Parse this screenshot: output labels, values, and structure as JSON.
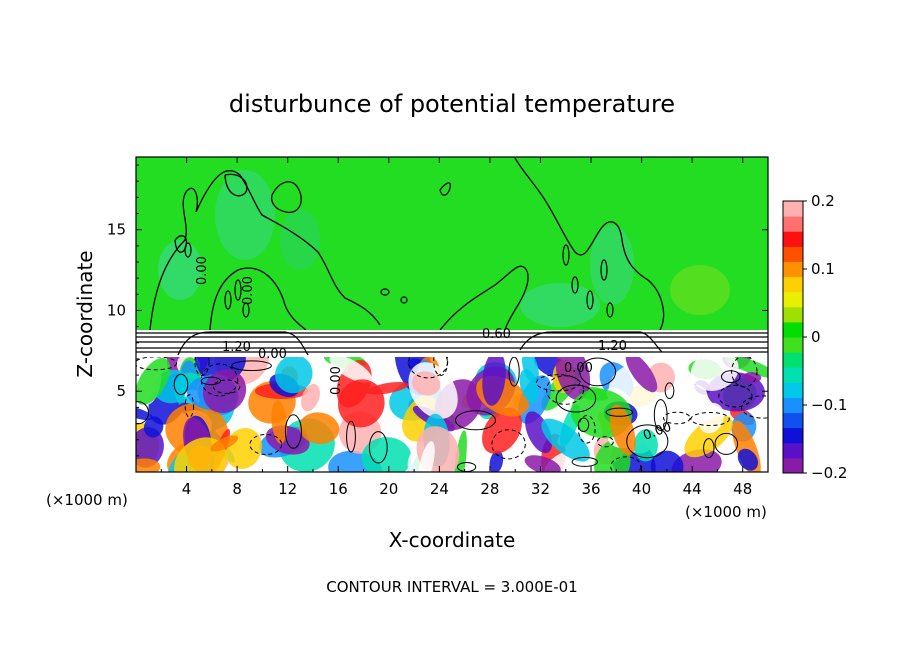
{
  "chart_data": {
    "type": "heatmap",
    "title": "disturbunce of potential temperature",
    "xlabel": "X-coordinate",
    "ylabel": "Z-coordinate",
    "x_unit_left": "(×1000 m)",
    "x_unit_right": "(×1000 m)",
    "xlim": [
      0,
      50
    ],
    "ylim": [
      0,
      19.5
    ],
    "x_ticks": [
      4,
      8,
      12,
      16,
      20,
      24,
      28,
      32,
      36,
      40,
      44,
      48
    ],
    "y_ticks": [
      5,
      10,
      15
    ],
    "colorbar": {
      "range": [
        -0.2,
        0.2
      ],
      "ticks": [
        {
          "value": 0.2,
          "label": "0.2"
        },
        {
          "value": 0.1,
          "label": "0.1"
        },
        {
          "value": 0,
          "label": "0"
        },
        {
          "value": -0.1,
          "label": "−0.1"
        },
        {
          "value": -0.2,
          "label": "−0.2"
        }
      ],
      "colors": [
        "#8a1aa8",
        "#5a10c8",
        "#1010d8",
        "#1050f0",
        "#1890ff",
        "#00c8e8",
        "#00e0b0",
        "#00e070",
        "#40e020",
        "#00dd00",
        "#a0e000",
        "#e8f000",
        "#ffd000",
        "#ff9000",
        "#ff5000",
        "#ff1010",
        "#ff7070",
        "#ffb0b0"
      ]
    },
    "upper_region_value": 0.0,
    "contour_labels": [
      "0.00",
      "0.00",
      "0.00",
      "0.00",
      "1.20",
      "0.60",
      "0.00",
      "1.20",
      "0.00"
    ],
    "footer": "CONTOUR INTERVAL = 3.000E-01"
  }
}
